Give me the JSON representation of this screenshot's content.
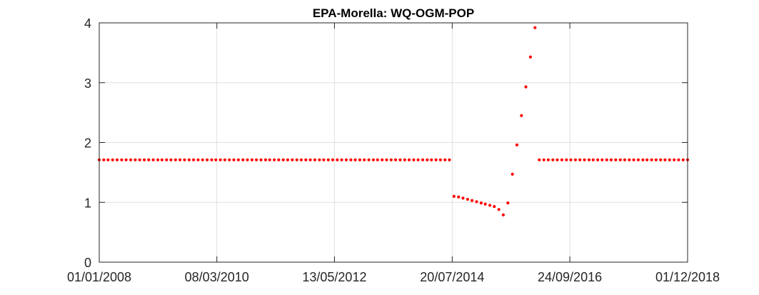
{
  "chart_data": {
    "type": "scatter",
    "title": "EPA-Morella: WQ-OGM-POP",
    "xlabel": "",
    "ylabel": "",
    "x_tick_labels": [
      "01/01/2008",
      "08/03/2010",
      "13/05/2012",
      "20/07/2014",
      "24/09/2016",
      "01/12/2018"
    ],
    "y_tick_labels": [
      "0",
      "1",
      "2",
      "3",
      "4"
    ],
    "xlim": [
      "01/01/2008",
      "01/12/2018"
    ],
    "ylim": [
      0,
      4
    ],
    "grid": true,
    "marker_color": "#ff0000",
    "series": [
      {
        "points": [
          {
            "x": "01/01/2008",
            "y": 1.71
          },
          {
            "x": "01/02/2008",
            "y": 1.71
          },
          {
            "x": "01/03/2008",
            "y": 1.71
          },
          {
            "x": "01/04/2008",
            "y": 1.71
          },
          {
            "x": "01/05/2008",
            "y": 1.71
          },
          {
            "x": "01/06/2008",
            "y": 1.71
          },
          {
            "x": "01/07/2008",
            "y": 1.71
          },
          {
            "x": "01/08/2008",
            "y": 1.71
          },
          {
            "x": "01/09/2008",
            "y": 1.71
          },
          {
            "x": "01/10/2008",
            "y": 1.71
          },
          {
            "x": "01/11/2008",
            "y": 1.71
          },
          {
            "x": "01/12/2008",
            "y": 1.71
          },
          {
            "x": "01/01/2009",
            "y": 1.71
          },
          {
            "x": "01/02/2009",
            "y": 1.71
          },
          {
            "x": "01/03/2009",
            "y": 1.71
          },
          {
            "x": "01/04/2009",
            "y": 1.71
          },
          {
            "x": "01/05/2009",
            "y": 1.71
          },
          {
            "x": "01/06/2009",
            "y": 1.71
          },
          {
            "x": "01/07/2009",
            "y": 1.71
          },
          {
            "x": "01/08/2009",
            "y": 1.71
          },
          {
            "x": "01/09/2009",
            "y": 1.71
          },
          {
            "x": "01/10/2009",
            "y": 1.71
          },
          {
            "x": "01/11/2009",
            "y": 1.71
          },
          {
            "x": "01/12/2009",
            "y": 1.71
          },
          {
            "x": "01/01/2010",
            "y": 1.71
          },
          {
            "x": "01/02/2010",
            "y": 1.71
          },
          {
            "x": "01/03/2010",
            "y": 1.71
          },
          {
            "x": "01/04/2010",
            "y": 1.71
          },
          {
            "x": "01/05/2010",
            "y": 1.71
          },
          {
            "x": "01/06/2010",
            "y": 1.71
          },
          {
            "x": "01/07/2010",
            "y": 1.71
          },
          {
            "x": "01/08/2010",
            "y": 1.71
          },
          {
            "x": "01/09/2010",
            "y": 1.71
          },
          {
            "x": "01/10/2010",
            "y": 1.71
          },
          {
            "x": "01/11/2010",
            "y": 1.71
          },
          {
            "x": "01/12/2010",
            "y": 1.71
          },
          {
            "x": "01/01/2011",
            "y": 1.71
          },
          {
            "x": "01/02/2011",
            "y": 1.71
          },
          {
            "x": "01/03/2011",
            "y": 1.71
          },
          {
            "x": "01/04/2011",
            "y": 1.71
          },
          {
            "x": "01/05/2011",
            "y": 1.71
          },
          {
            "x": "01/06/2011",
            "y": 1.71
          },
          {
            "x": "01/07/2011",
            "y": 1.71
          },
          {
            "x": "01/08/2011",
            "y": 1.71
          },
          {
            "x": "01/09/2011",
            "y": 1.71
          },
          {
            "x": "01/10/2011",
            "y": 1.71
          },
          {
            "x": "01/11/2011",
            "y": 1.71
          },
          {
            "x": "01/12/2011",
            "y": 1.71
          },
          {
            "x": "01/01/2012",
            "y": 1.71
          },
          {
            "x": "01/02/2012",
            "y": 1.71
          },
          {
            "x": "01/03/2012",
            "y": 1.71
          },
          {
            "x": "01/04/2012",
            "y": 1.71
          },
          {
            "x": "01/05/2012",
            "y": 1.71
          },
          {
            "x": "01/06/2012",
            "y": 1.71
          },
          {
            "x": "01/07/2012",
            "y": 1.71
          },
          {
            "x": "01/08/2012",
            "y": 1.71
          },
          {
            "x": "01/09/2012",
            "y": 1.71
          },
          {
            "x": "01/10/2012",
            "y": 1.71
          },
          {
            "x": "01/11/2012",
            "y": 1.71
          },
          {
            "x": "01/12/2012",
            "y": 1.71
          },
          {
            "x": "01/01/2013",
            "y": 1.71
          },
          {
            "x": "01/02/2013",
            "y": 1.71
          },
          {
            "x": "01/03/2013",
            "y": 1.71
          },
          {
            "x": "01/04/2013",
            "y": 1.71
          },
          {
            "x": "01/05/2013",
            "y": 1.71
          },
          {
            "x": "01/06/2013",
            "y": 1.71
          },
          {
            "x": "01/07/2013",
            "y": 1.71
          },
          {
            "x": "01/08/2013",
            "y": 1.71
          },
          {
            "x": "01/09/2013",
            "y": 1.71
          },
          {
            "x": "01/10/2013",
            "y": 1.71
          },
          {
            "x": "01/11/2013",
            "y": 1.71
          },
          {
            "x": "01/12/2013",
            "y": 1.71
          },
          {
            "x": "01/01/2014",
            "y": 1.71
          },
          {
            "x": "01/02/2014",
            "y": 1.71
          },
          {
            "x": "01/03/2014",
            "y": 1.71
          },
          {
            "x": "01/04/2014",
            "y": 1.71
          },
          {
            "x": "01/05/2014",
            "y": 1.71
          },
          {
            "x": "01/06/2014",
            "y": 1.71
          },
          {
            "x": "01/07/2014",
            "y": 1.71
          },
          {
            "x": "01/08/2014",
            "y": 1.1
          },
          {
            "x": "01/09/2014",
            "y": 1.09
          },
          {
            "x": "01/10/2014",
            "y": 1.07
          },
          {
            "x": "01/11/2014",
            "y": 1.05
          },
          {
            "x": "01/12/2014",
            "y": 1.03
          },
          {
            "x": "01/01/2015",
            "y": 1.01
          },
          {
            "x": "01/02/2015",
            "y": 0.99
          },
          {
            "x": "01/03/2015",
            "y": 0.97
          },
          {
            "x": "01/04/2015",
            "y": 0.95
          },
          {
            "x": "01/05/2015",
            "y": 0.93
          },
          {
            "x": "01/06/2015",
            "y": 0.88
          },
          {
            "x": "01/07/2015",
            "y": 0.79
          },
          {
            "x": "01/08/2015",
            "y": 0.99
          },
          {
            "x": "01/09/2015",
            "y": 1.47
          },
          {
            "x": "01/10/2015",
            "y": 1.96
          },
          {
            "x": "01/11/2015",
            "y": 2.45
          },
          {
            "x": "01/12/2015",
            "y": 2.93
          },
          {
            "x": "01/01/2016",
            "y": 3.43
          },
          {
            "x": "01/02/2016",
            "y": 3.92
          },
          {
            "x": "01/03/2016",
            "y": 1.71
          },
          {
            "x": "01/04/2016",
            "y": 1.71
          },
          {
            "x": "01/05/2016",
            "y": 1.71
          },
          {
            "x": "01/06/2016",
            "y": 1.71
          },
          {
            "x": "01/07/2016",
            "y": 1.71
          },
          {
            "x": "01/08/2016",
            "y": 1.71
          },
          {
            "x": "01/09/2016",
            "y": 1.71
          },
          {
            "x": "01/10/2016",
            "y": 1.71
          },
          {
            "x": "01/11/2016",
            "y": 1.71
          },
          {
            "x": "01/12/2016",
            "y": 1.71
          },
          {
            "x": "01/01/2017",
            "y": 1.71
          },
          {
            "x": "01/02/2017",
            "y": 1.71
          },
          {
            "x": "01/03/2017",
            "y": 1.71
          },
          {
            "x": "01/04/2017",
            "y": 1.71
          },
          {
            "x": "01/05/2017",
            "y": 1.71
          },
          {
            "x": "01/06/2017",
            "y": 1.71
          },
          {
            "x": "01/07/2017",
            "y": 1.71
          },
          {
            "x": "01/08/2017",
            "y": 1.71
          },
          {
            "x": "01/09/2017",
            "y": 1.71
          },
          {
            "x": "01/10/2017",
            "y": 1.71
          },
          {
            "x": "01/11/2017",
            "y": 1.71
          },
          {
            "x": "01/12/2017",
            "y": 1.71
          },
          {
            "x": "01/01/2018",
            "y": 1.71
          },
          {
            "x": "01/02/2018",
            "y": 1.71
          },
          {
            "x": "01/03/2018",
            "y": 1.71
          },
          {
            "x": "01/04/2018",
            "y": 1.71
          },
          {
            "x": "01/05/2018",
            "y": 1.71
          },
          {
            "x": "01/06/2018",
            "y": 1.71
          },
          {
            "x": "01/07/2018",
            "y": 1.71
          },
          {
            "x": "01/08/2018",
            "y": 1.71
          },
          {
            "x": "01/09/2018",
            "y": 1.71
          },
          {
            "x": "01/10/2018",
            "y": 1.71
          },
          {
            "x": "01/11/2018",
            "y": 1.71
          },
          {
            "x": "01/12/2018",
            "y": 1.71
          }
        ]
      }
    ]
  }
}
